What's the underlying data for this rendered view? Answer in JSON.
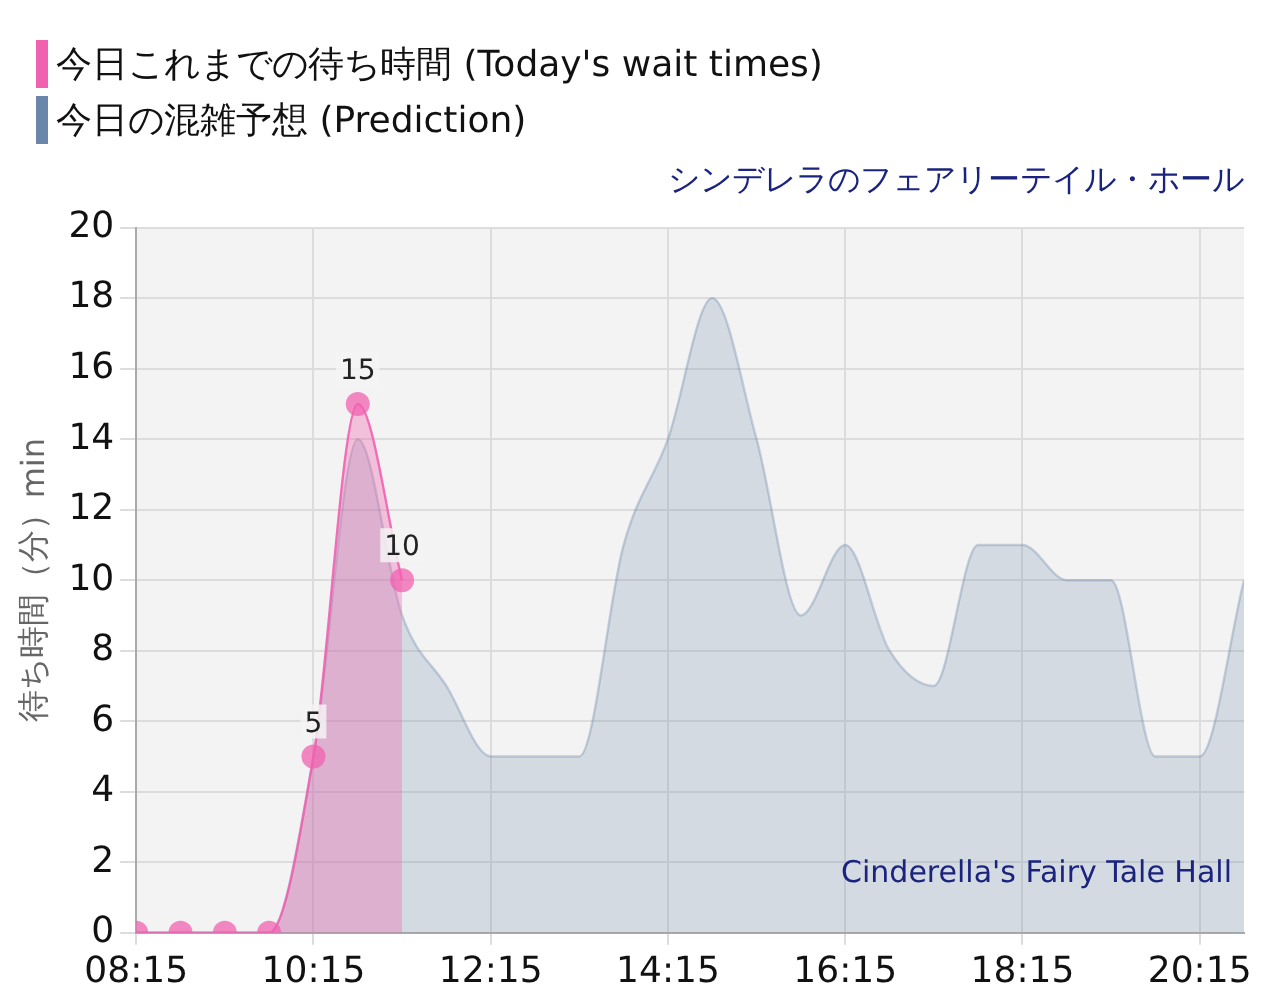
{
  "chart_data": {
    "type": "area",
    "title": "シンデレラのフェアリーテイル・ホール",
    "ylabel": "待ち時間（分）min",
    "annotations": [
      "Cinderella's Fairy Tale Hall"
    ],
    "xlim": [
      8.25,
      20.75
    ],
    "xticks": [
      {
        "value": 8.25,
        "label": "08:15"
      },
      {
        "value": 10.25,
        "label": "10:15"
      },
      {
        "value": 12.25,
        "label": "12:15"
      },
      {
        "value": 14.25,
        "label": "14:15"
      },
      {
        "value": 16.25,
        "label": "16:15"
      },
      {
        "value": 18.25,
        "label": "18:15"
      },
      {
        "value": 20.25,
        "label": "20:15"
      }
    ],
    "ylim": [
      0,
      20
    ],
    "yticks": [
      0,
      2,
      4,
      6,
      8,
      10,
      12,
      14,
      16,
      18,
      20
    ],
    "grid": true,
    "legend": "top left",
    "series": [
      {
        "name": "今日これまでの待ち時間 (Today's wait times)",
        "color": "#f062b0",
        "marker": "circle",
        "x": [
          8.25,
          8.75,
          9.25,
          9.75,
          10.25,
          10.75,
          11.25
        ],
        "values": [
          0,
          0,
          0,
          0,
          5,
          15,
          10
        ],
        "value_labels": [
          null,
          null,
          null,
          null,
          "5",
          "15",
          "10"
        ]
      },
      {
        "name": "今日の混雑予想 (Prediction)",
        "color": "#6a86a8",
        "marker": "none",
        "x": [
          8.25,
          8.75,
          9.25,
          9.75,
          10.25,
          10.75,
          11.25,
          11.75,
          12.25,
          12.75,
          13.25,
          13.75,
          14.25,
          14.75,
          15.25,
          15.75,
          16.25,
          16.75,
          17.25,
          17.75,
          18.25,
          18.75,
          19.25,
          19.75,
          20.25,
          20.75
        ],
        "values": [
          0,
          0,
          0,
          0,
          5,
          14,
          9,
          7,
          5,
          5,
          5,
          11,
          14,
          18,
          14,
          9,
          11,
          8,
          7,
          11,
          11,
          10,
          10,
          5,
          5,
          10
        ]
      }
    ]
  }
}
